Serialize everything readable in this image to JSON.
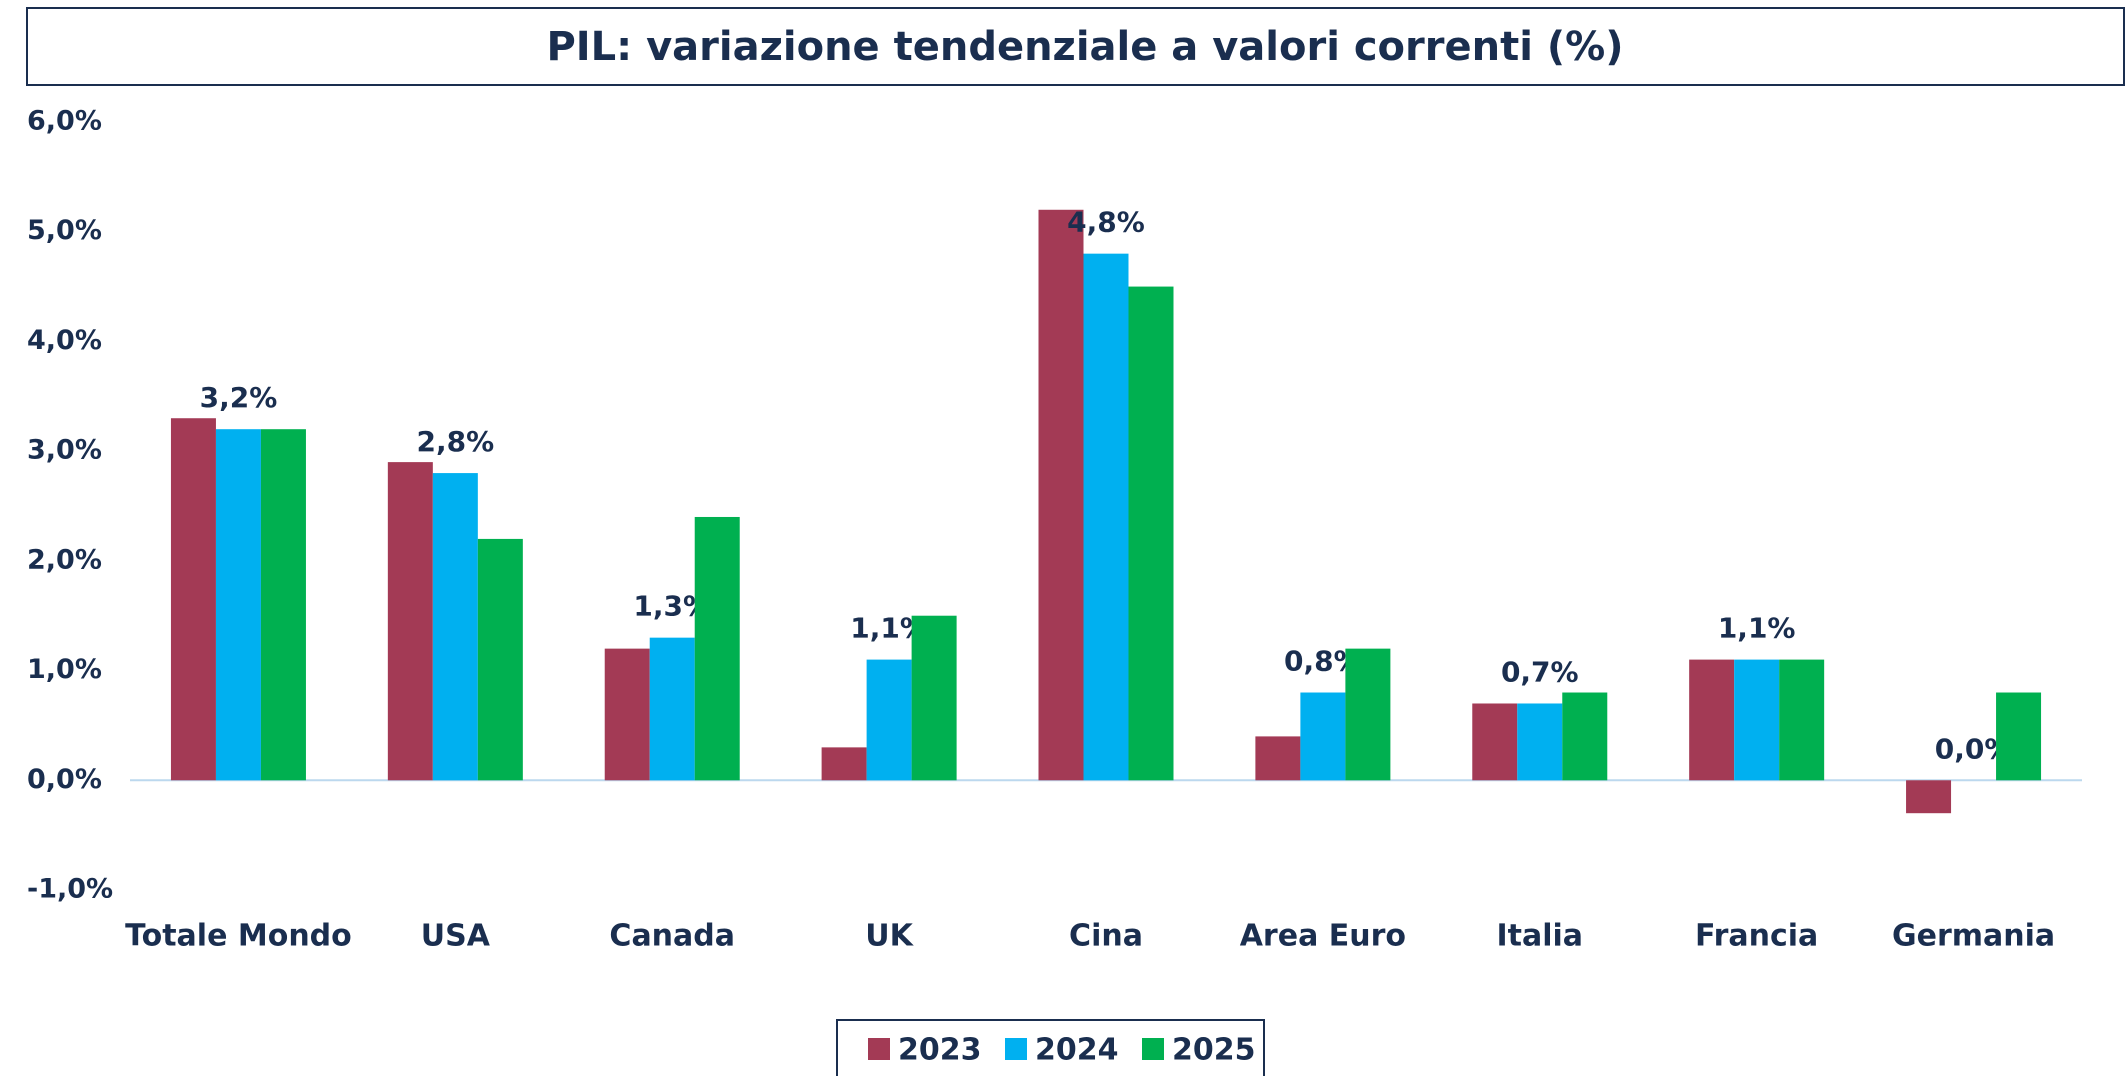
{
  "chart_data": {
    "type": "bar",
    "title": "PIL: variazione tendenziale a valori correnti (%)",
    "categories": [
      "Totale Mondo",
      "USA",
      "Canada",
      "UK",
      "Cina",
      "Area Euro",
      "Italia",
      "Francia",
      "Germania"
    ],
    "series": [
      {
        "name": "2023",
        "color": "#a33a55",
        "values": [
          3.3,
          2.9,
          1.2,
          0.3,
          5.2,
          0.4,
          0.7,
          1.1,
          -0.3
        ]
      },
      {
        "name": "2024",
        "color": "#00b0f0",
        "values": [
          3.2,
          2.8,
          1.3,
          1.1,
          4.8,
          0.8,
          0.7,
          1.1,
          0.0
        ],
        "value_labels": [
          "3,2%",
          "2,8%",
          "1,3%",
          "1,1%",
          "4,8%",
          "0,8%",
          "0,7%",
          "1,1%",
          "0,0%"
        ]
      },
      {
        "name": "2025",
        "color": "#00b050",
        "values": [
          3.2,
          2.2,
          2.4,
          1.5,
          4.5,
          1.2,
          0.8,
          1.1,
          0.8
        ]
      }
    ],
    "ylim": [
      -1,
      6
    ],
    "yticks": [
      {
        "value": -1,
        "label": "-1,0%"
      },
      {
        "value": 0,
        "label": "0,0%"
      },
      {
        "value": 1,
        "label": "1,0%"
      },
      {
        "value": 2,
        "label": "2,0%"
      },
      {
        "value": 3,
        "label": "3,0%"
      },
      {
        "value": 4,
        "label": "4,0%"
      },
      {
        "value": 5,
        "label": "5,0%"
      },
      {
        "value": 6,
        "label": "6,0%"
      }
    ],
    "grid": false,
    "legend": "bottom"
  }
}
